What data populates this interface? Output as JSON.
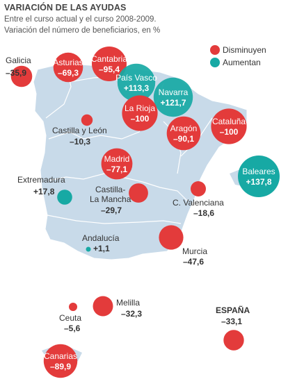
{
  "title": "VARIACIÓN DE LAS AYUDAS",
  "subtitle1": "Entre el curso actual y el curso 2008-2009.",
  "subtitle2": "Variación del número de beneficiarios, en %",
  "legend": {
    "decrease": "Disminuyen",
    "increase": "Aumentan"
  },
  "colors": {
    "decrease": "#e33b3b",
    "increase": "#17a9a4",
    "land": "#c8dae9"
  },
  "regions": [
    {
      "name": "Galicia",
      "value": "–35,9",
      "v": -35.9
    },
    {
      "name": "Asturias",
      "value": "–69,3",
      "v": -69.3
    },
    {
      "name": "Cantabria",
      "value": "–95,4",
      "v": -95.4
    },
    {
      "name": "País Vasco",
      "value": "+113,3",
      "v": 113.3
    },
    {
      "name": "Navarra",
      "value": "+121,7",
      "v": 121.7
    },
    {
      "name": "La Rioja",
      "value": "–100",
      "v": -100
    },
    {
      "name": "Cataluña",
      "value": "–100",
      "v": -100
    },
    {
      "name": "Aragón",
      "value": "–90,1",
      "v": -90.1
    },
    {
      "name": "Castilla y León",
      "value": "–10,3",
      "v": -10.3
    },
    {
      "name": "Madrid",
      "value": "–77,1",
      "v": -77.1
    },
    {
      "name": "Baleares",
      "value": "+137,8",
      "v": 137.8
    },
    {
      "name": "Extremadura",
      "value": "+17,8",
      "v": 17.8
    },
    {
      "name": "Castilla-La Mancha",
      "label1": "Castilla-",
      "label2": "La Mancha",
      "value": "–29,7",
      "v": -29.7
    },
    {
      "name": "C. Valenciana",
      "value": "–18,6",
      "v": -18.6
    },
    {
      "name": "Murcia",
      "value": "–47,6",
      "v": -47.6
    },
    {
      "name": "Andalucía",
      "value": "+1,1",
      "v": 1.1
    },
    {
      "name": "Melilla",
      "value": "–32,3",
      "v": -32.3
    },
    {
      "name": "Ceuta",
      "value": "–5,6",
      "v": -5.6
    },
    {
      "name": "Canarias",
      "value": "–89,9",
      "v": -89.9
    },
    {
      "name": "ESPAÑA",
      "value": "–33,1",
      "v": -33.1
    }
  ]
}
